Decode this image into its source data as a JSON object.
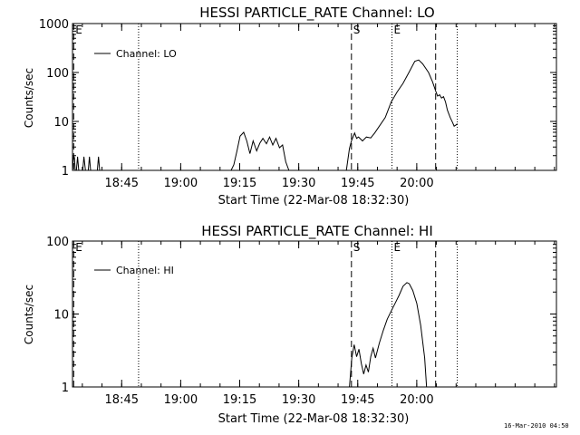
{
  "footer": {
    "timestamp": "16-Mar-2010 04:50"
  },
  "chart_data": [
    {
      "type": "line",
      "title": "HESSI PARTICLE_RATE Channel: LO",
      "xlabel": "Start Time (22-Mar-08 18:32:30)",
      "ylabel": "Counts/sec",
      "yscale": "log",
      "ylim": [
        1,
        1000
      ],
      "y_ticks": [
        "1",
        "10",
        "100",
        "1000"
      ],
      "xlim_minutes_after_start": [
        0,
        123
      ],
      "x_ticks": [
        "18:45",
        "19:00",
        "19:15",
        "19:30",
        "19:45",
        "20:00"
      ],
      "legend": {
        "position": "top-left",
        "label": "Channel: LO"
      },
      "markers": [
        {
          "label": "E",
          "style": "dashed",
          "minutes_after_start": 0.3
        },
        {
          "label": "",
          "style": "dotted",
          "minutes_after_start": 16.8
        },
        {
          "label": "S",
          "style": "dashed",
          "minutes_after_start": 70.9
        },
        {
          "label": "E",
          "style": "dotted",
          "minutes_after_start": 81.2
        },
        {
          "label": "",
          "style": "dashed",
          "minutes_after_start": 92.3
        },
        {
          "label": "",
          "style": "dotted",
          "minutes_after_start": 97.8
        }
      ],
      "series": [
        {
          "points": [
            [
              0.0,
              1
            ],
            [
              0.3,
              2
            ],
            [
              0.5,
              1.8
            ],
            [
              0.7,
              1
            ],
            [
              1.0,
              1
            ],
            [
              1.3,
              1.9
            ],
            [
              1.6,
              1
            ],
            [
              2.6,
              1
            ],
            [
              2.9,
              1.9
            ],
            [
              3.3,
              1
            ],
            [
              4.0,
              1
            ],
            [
              4.3,
              1.9
            ],
            [
              4.6,
              1
            ],
            [
              6.3,
              1
            ],
            [
              6.6,
              1.9
            ],
            [
              6.9,
              1
            ],
            [
              40.3,
              1
            ],
            [
              41.0,
              1.3
            ],
            [
              41.8,
              2.5
            ],
            [
              42.6,
              5.0
            ],
            [
              43.5,
              6.0
            ],
            [
              44.3,
              4.0
            ],
            [
              45.1,
              2.2
            ],
            [
              45.9,
              4.0
            ],
            [
              46.8,
              2.5
            ],
            [
              47.6,
              3.6
            ],
            [
              48.4,
              4.5
            ],
            [
              49.3,
              3.5
            ],
            [
              50.1,
              4.8
            ],
            [
              50.9,
              3.3
            ],
            [
              51.7,
              4.5
            ],
            [
              52.6,
              2.9
            ],
            [
              53.4,
              3.3
            ],
            [
              54.2,
              1.5
            ],
            [
              55.0,
              1
            ],
            [
              69.6,
              1
            ],
            [
              70.4,
              2.8
            ],
            [
              70.9,
              4.0
            ],
            [
              71.7,
              5.8
            ],
            [
              72.2,
              4.5
            ],
            [
              72.7,
              4.8
            ],
            [
              73.7,
              4.0
            ],
            [
              74.7,
              4.8
            ],
            [
              75.8,
              4.6
            ],
            [
              76.8,
              5.8
            ],
            [
              78.0,
              8.0
            ],
            [
              79.5,
              12
            ],
            [
              81.0,
              25
            ],
            [
              82.5,
              40
            ],
            [
              84.0,
              60
            ],
            [
              85.5,
              100
            ],
            [
              87.0,
              170
            ],
            [
              88.0,
              180
            ],
            [
              89.0,
              150
            ],
            [
              90.5,
              100
            ],
            [
              91.5,
              65
            ],
            [
              92.3,
              42
            ],
            [
              92.8,
              33
            ],
            [
              93.3,
              35
            ],
            [
              93.8,
              30
            ],
            [
              94.3,
              32
            ],
            [
              94.8,
              25
            ],
            [
              95.3,
              17
            ],
            [
              96.0,
              12
            ],
            [
              96.6,
              9.5
            ],
            [
              97.0,
              8.0
            ],
            [
              97.5,
              8.5
            ],
            [
              97.8,
              9.0
            ]
          ]
        }
      ]
    },
    {
      "type": "line",
      "title": "HESSI PARTICLE_RATE Channel: HI",
      "xlabel": "Start Time (22-Mar-08 18:32:30)",
      "ylabel": "Counts/sec",
      "yscale": "log",
      "ylim": [
        1,
        100
      ],
      "y_ticks": [
        "1",
        "10",
        "100"
      ],
      "xlim_minutes_after_start": [
        0,
        123
      ],
      "x_ticks": [
        "18:45",
        "19:00",
        "19:15",
        "19:30",
        "19:45",
        "20:00"
      ],
      "legend": {
        "position": "top-left",
        "label": "Channel: HI"
      },
      "markers": [
        {
          "label": "E",
          "style": "dashed",
          "minutes_after_start": 0.3
        },
        {
          "label": "",
          "style": "dotted",
          "minutes_after_start": 16.8
        },
        {
          "label": "S",
          "style": "dashed",
          "minutes_after_start": 70.9
        },
        {
          "label": "E",
          "style": "dotted",
          "minutes_after_start": 81.2
        },
        {
          "label": "",
          "style": "dashed",
          "minutes_after_start": 92.3
        },
        {
          "label": "",
          "style": "dotted",
          "minutes_after_start": 97.8
        }
      ],
      "series": [
        {
          "points": [
            [
              70.4,
              1
            ],
            [
              71.0,
              2.5
            ],
            [
              71.6,
              3.8
            ],
            [
              72.2,
              2.6
            ],
            [
              72.8,
              3.3
            ],
            [
              73.4,
              2.1
            ],
            [
              74.0,
              1.5
            ],
            [
              74.6,
              2.0
            ],
            [
              75.2,
              1.6
            ],
            [
              75.8,
              2.6
            ],
            [
              76.4,
              3.4
            ],
            [
              77.0,
              2.5
            ],
            [
              78.0,
              4.0
            ],
            [
              79.0,
              6.0
            ],
            [
              80.0,
              8.5
            ],
            [
              81.0,
              11
            ],
            [
              82.0,
              14
            ],
            [
              83.0,
              18
            ],
            [
              84.0,
              24
            ],
            [
              85.0,
              27
            ],
            [
              85.6,
              26
            ],
            [
              86.5,
              21
            ],
            [
              87.5,
              14
            ],
            [
              88.5,
              7
            ],
            [
              89.5,
              2.5
            ],
            [
              90.0,
              1
            ]
          ]
        }
      ]
    }
  ]
}
